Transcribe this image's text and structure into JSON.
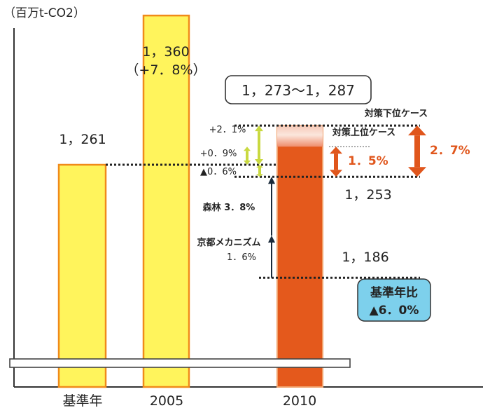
{
  "chart_data": {
    "type": "bar",
    "unit_label": "（百万t-CO2）",
    "categories": [
      "基準年",
      "2005",
      "2010"
    ],
    "values": [
      1261,
      1360,
      1287
    ],
    "bar_labels": [
      "1，261",
      "1，360",
      ""
    ],
    "bar_sublabels": [
      "",
      "（+7．8%）",
      ""
    ],
    "colors": {
      "base_fill": "#fff45c",
      "base_stroke": "#f08a1a",
      "target_fill": "#e4591c",
      "target_top": "#f4b29a",
      "accent": "#e0561c",
      "badge_fill": "#7dd0ec"
    },
    "target_range": {
      "text": "1，273～1，287",
      "low": 1273,
      "high": 1287
    },
    "levels": [
      {
        "value": 1287,
        "label": "対策下位ケース"
      },
      {
        "value": 1273,
        "label": "対策上位ケース"
      },
      {
        "value": 1261,
        "label": ""
      },
      {
        "value": 1253,
        "label": "1，253"
      },
      {
        "value": 1186,
        "label": "1，186"
      }
    ],
    "deltas": [
      {
        "label": "+2．1%",
        "from": 1261,
        "to": 1287
      },
      {
        "label": "+0．9%",
        "from": 1261,
        "to": 1273
      },
      {
        "label": "▲0．6%",
        "from": 1261,
        "to": 1253
      },
      {
        "label": "森林 3．8%",
        "from": 1253,
        "to": 1205
      },
      {
        "label_line1": "京都メカニズム",
        "label_line2": "1．6%",
        "from": 1205,
        "to": 1186
      }
    ],
    "ranges": [
      {
        "label": "1．5%",
        "from": 1253,
        "to": 1273
      },
      {
        "label": "2．7%",
        "from": 1253,
        "to": 1287
      }
    ],
    "badge": {
      "line1": "基準年比",
      "line2": "▲6．0%"
    }
  }
}
